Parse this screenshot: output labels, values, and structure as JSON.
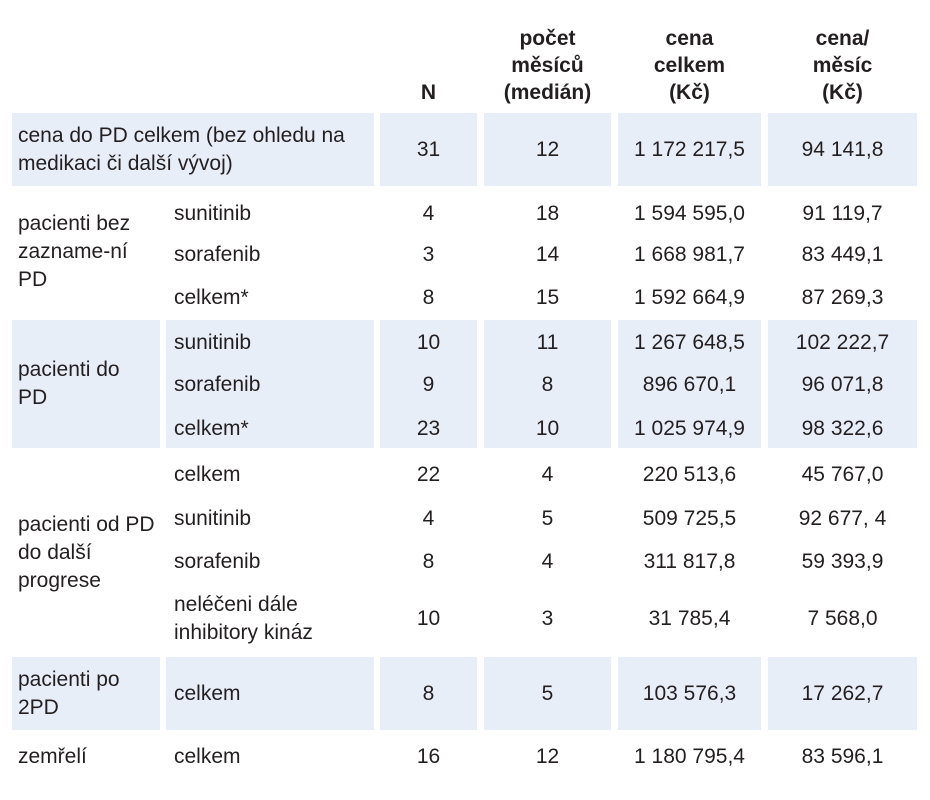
{
  "colors": {
    "highlight": "#e8eef8",
    "text": "#231f20"
  },
  "headers": {
    "n": "N",
    "months": "počet\nměsíců\n(medián)",
    "total_price": "cena\ncelkem\n(Kč)",
    "monthly_price": "cena/\nměsíc\n(Kč)"
  },
  "groups": [
    {
      "label": "cena do PD celkem (bez ohledu na medikaci či další vývoj)"
    },
    {
      "label": "pacienti bez zazname-ní PD"
    },
    {
      "label": "pacienti do PD"
    },
    {
      "label": "pacienti od PD do další progrese"
    },
    {
      "label": "pacienti po 2PD"
    },
    {
      "label": "zemřelí"
    }
  ],
  "rows": [
    {
      "sub": "",
      "n": "31",
      "months": "12",
      "total": "1 172 217,5",
      "monthly": "94 141,8"
    },
    {
      "sub": "sunitinib",
      "n": "4",
      "months": "18",
      "total": "1 594 595,0",
      "monthly": "91 119,7"
    },
    {
      "sub": "sorafenib",
      "n": "3",
      "months": "14",
      "total": "1 668 981,7",
      "monthly": "83 449,1"
    },
    {
      "sub": "celkem*",
      "n": "8",
      "months": "15",
      "total": "1 592 664,9",
      "monthly": "87 269,3"
    },
    {
      "sub": "sunitinib",
      "n": "10",
      "months": "11",
      "total": "1 267 648,5",
      "monthly": "102 222,7"
    },
    {
      "sub": "sorafenib",
      "n": "9",
      "months": "8",
      "total": "896 670,1",
      "monthly": "96 071,8"
    },
    {
      "sub": "celkem*",
      "n": "23",
      "months": "10",
      "total": "1 025 974,9",
      "monthly": "98 322,6"
    },
    {
      "sub": "celkem",
      "n": "22",
      "months": "4",
      "total": "220 513,6",
      "monthly": "45 767,0"
    },
    {
      "sub": "sunitinib",
      "n": "4",
      "months": "5",
      "total": "509 725,5",
      "monthly": "92 677, 4"
    },
    {
      "sub": "sorafenib",
      "n": "8",
      "months": "4",
      "total": "311 817,8",
      "monthly": "59 393,9"
    },
    {
      "sub": "neléčeni dále inhibitory kináz",
      "n": "10",
      "months": "3",
      "total": "31 785,4",
      "monthly": "7 568,0"
    },
    {
      "sub": "celkem",
      "n": "8",
      "months": "5",
      "total": "103 576,3",
      "monthly": "17 262,7"
    },
    {
      "sub": "celkem",
      "n": "16",
      "months": "12",
      "total": "1 180 795,4",
      "monthly": "83 596,1"
    }
  ]
}
